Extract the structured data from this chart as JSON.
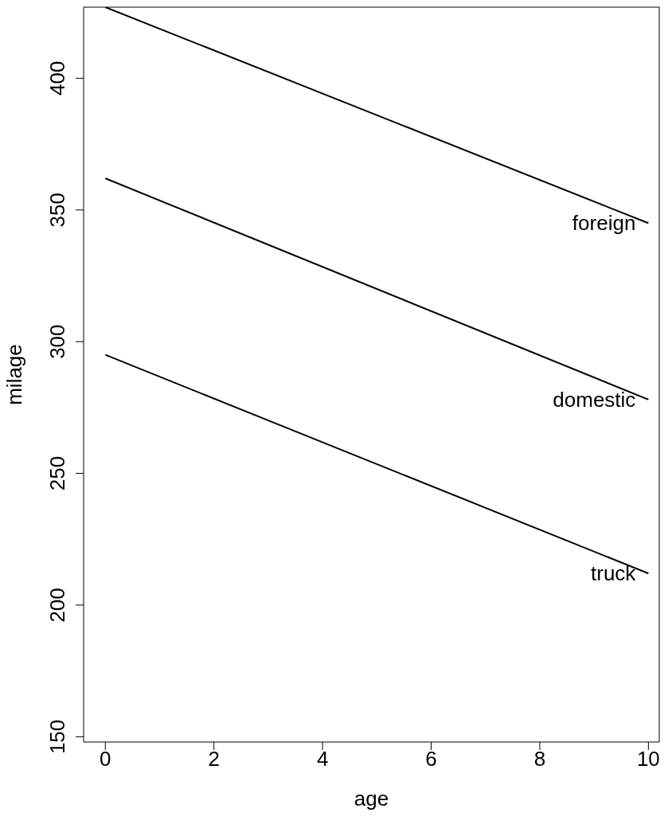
{
  "chart_data": {
    "type": "line",
    "xlabel": "age",
    "ylabel": "milage",
    "x": [
      0,
      10
    ],
    "series": [
      {
        "name": "foreign",
        "color": "#000000",
        "values": [
          427,
          345
        ]
      },
      {
        "name": "domestic",
        "color": "#000000",
        "values": [
          362,
          278
        ]
      },
      {
        "name": "truck",
        "color": "#000000",
        "values": [
          295,
          212
        ]
      }
    ],
    "xlim": [
      -0.4,
      10.2
    ],
    "xticks": [
      0,
      2,
      4,
      6,
      8,
      10
    ],
    "ylim": [
      148,
      427
    ],
    "yticks": [
      150,
      200,
      250,
      300,
      350,
      400
    ],
    "grid": false,
    "legend": false,
    "marker": "none",
    "line_style": "solid"
  }
}
